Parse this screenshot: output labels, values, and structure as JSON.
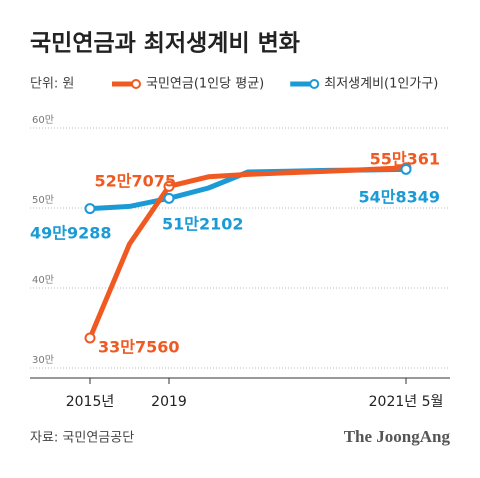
{
  "chart_data": {
    "type": "line",
    "title": "국민연금과 최저생계비 변화",
    "unit": "단위: 원",
    "source": "자료: 국민연금공단",
    "brand": "The JoongAng",
    "categories": [
      "2015년",
      null,
      "2019",
      null,
      null,
      null,
      null,
      null,
      "2021년 5월"
    ],
    "series": [
      {
        "name": "국민연금(1인당 평균)",
        "color": "#f05a22",
        "values": [
          337560,
          455000,
          527075,
          539000,
          542000,
          544000,
          546000,
          548000,
          550361
        ],
        "value_labels": [
          "33만7560",
          null,
          "52만7075",
          null,
          null,
          null,
          null,
          null,
          "55만361"
        ]
      },
      {
        "name": "최저생계비(1인가구)",
        "color": "#1b9ad6",
        "values": [
          499288,
          502000,
          512102,
          525000,
          545000,
          546000,
          547000,
          547500,
          548349
        ],
        "value_labels": [
          "49만9288",
          null,
          "51만2102",
          null,
          null,
          null,
          null,
          null,
          "54만8349"
        ]
      }
    ],
    "ylim": [
      287500,
      612500
    ],
    "yticks": [
      {
        "value": 300000,
        "label": "30만"
      },
      {
        "value": 400000,
        "label": "40만"
      },
      {
        "value": 500000,
        "label": "50만"
      },
      {
        "value": 600000,
        "label": "60만"
      }
    ],
    "grid": true
  }
}
